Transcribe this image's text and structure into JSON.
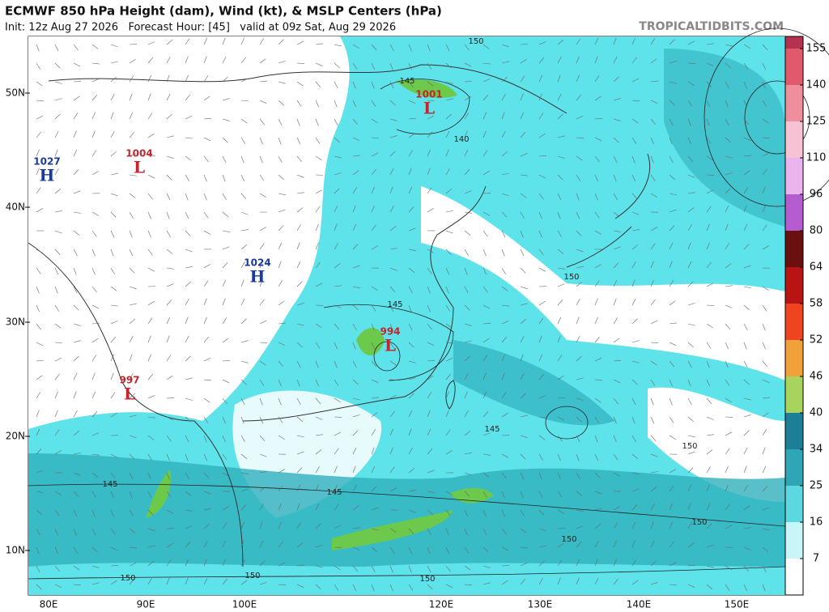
{
  "header": {
    "title": "ECMWF 850 hPa Height (dam), Wind (kt), & MSLP Centers (hPa)",
    "subtitle": "Init: 12z Aug 27 2026   Forecast Hour: [45]   valid at 09z Sat, Aug 29 2026",
    "site": "TROPICALTIDBITS.COM"
  },
  "map": {
    "latitude_labels": [
      "50N",
      "40N",
      "30N",
      "20N",
      "10N"
    ],
    "longitude_labels": [
      "80E",
      "90E",
      "100E",
      "120E",
      "130E",
      "140E",
      "150E"
    ],
    "pressure_centers": [
      {
        "type": "H",
        "value": 1027
      },
      {
        "type": "L",
        "value": 1004
      },
      {
        "type": "H",
        "value": 1024
      },
      {
        "type": "L",
        "value": 1001
      },
      {
        "type": "L",
        "value": 994
      },
      {
        "type": "L",
        "value": 997
      }
    ],
    "contour_labels": [
      150,
      145,
      140,
      150,
      145,
      145,
      150,
      145,
      145,
      150,
      150,
      150,
      150,
      150
    ]
  },
  "colorbar": {
    "ticks": [
      155,
      140,
      125,
      110,
      96,
      80,
      64,
      58,
      52,
      46,
      40,
      34,
      25,
      16,
      7
    ]
  }
}
